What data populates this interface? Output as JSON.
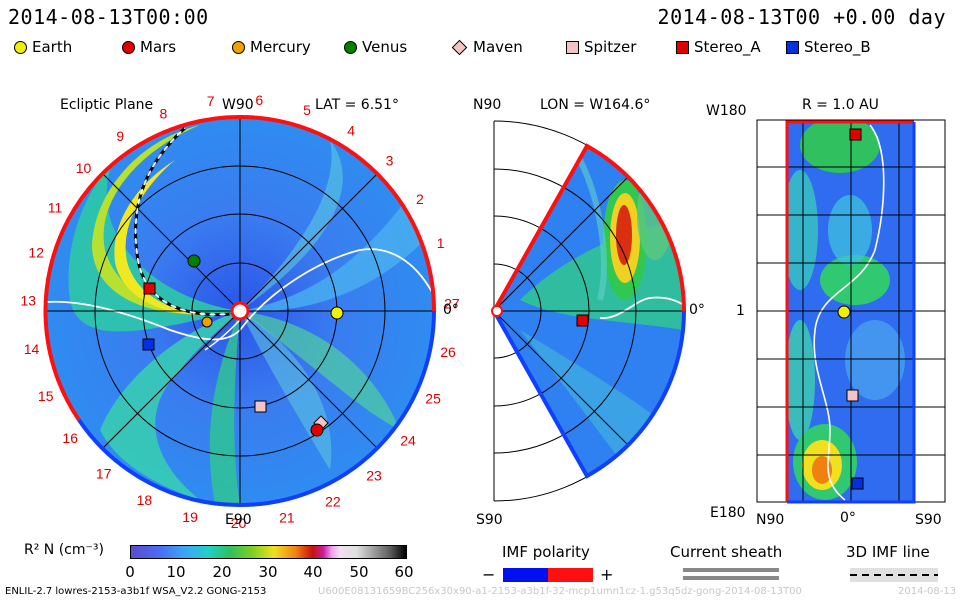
{
  "header": {
    "left_time": "2014-08-13T00:00",
    "right_time": "2014-08-13T00 +0.00 day"
  },
  "legend": [
    {
      "label": "Earth",
      "shape": "circle",
      "color": "#f0f000"
    },
    {
      "label": "Mars",
      "shape": "circle",
      "color": "#e00000"
    },
    {
      "label": "Mercury",
      "shape": "circle",
      "color": "#f0a000"
    },
    {
      "label": "Venus",
      "shape": "circle",
      "color": "#008000"
    },
    {
      "label": "Maven",
      "shape": "diamond",
      "color": "#f4c4c4"
    },
    {
      "label": "Spitzer",
      "shape": "square",
      "color": "#f4c4c4"
    },
    {
      "label": "Stereo_A",
      "shape": "square",
      "color": "#e00000"
    },
    {
      "label": "Stereo_B",
      "shape": "square",
      "color": "#0030e0"
    }
  ],
  "ecliptic": {
    "title": "Ecliptic Plane",
    "lat": "LAT = 6.51°",
    "top_label": "W90",
    "bottom_label": "E90",
    "right_label": "0°",
    "carrington_numbers": [
      "1",
      "2",
      "3",
      "4",
      "5",
      "6",
      "7",
      "8",
      "9",
      "10",
      "11",
      "12",
      "13",
      "14",
      "15",
      "16",
      "17",
      "18",
      "19",
      "20",
      "21",
      "22",
      "23",
      "24",
      "25",
      "26",
      "27"
    ]
  },
  "meridional": {
    "title": "LON = W164.6°",
    "top_label": "N90",
    "bottom_label": "S90",
    "right_label": "0°"
  },
  "radial": {
    "title": "R = 1.0 AU",
    "top_label": "W180",
    "bottom_label": "E180",
    "mid_label": "1",
    "x_left": "N90",
    "x_mid": "0°",
    "x_right": "S90"
  },
  "colorbar": {
    "label": "R² N (cm⁻³)",
    "ticks": [
      "0",
      "10",
      "20",
      "30",
      "40",
      "50",
      "60"
    ]
  },
  "imf": {
    "polarity_label": "IMF polarity",
    "minus": "−",
    "plus": "+",
    "sheath_label": "Current sheath",
    "imf3d_label": "3D IMF line"
  },
  "footer": {
    "left": "ENLIL-2.7 lowres-2153-a3b1f WSA_V2.2 GONG-2153",
    "middle": "U600E08131659BC256x30x90-a1-2153-a3b1f-32-mcp1umn1cz-1.g53q5dz-gong-2014-08-13T00",
    "right": "2014-08-13"
  },
  "colors": {
    "boundary_red": "#ff1010",
    "boundary_blue": "#1040ff",
    "carrington_text": "#dd0000"
  }
}
